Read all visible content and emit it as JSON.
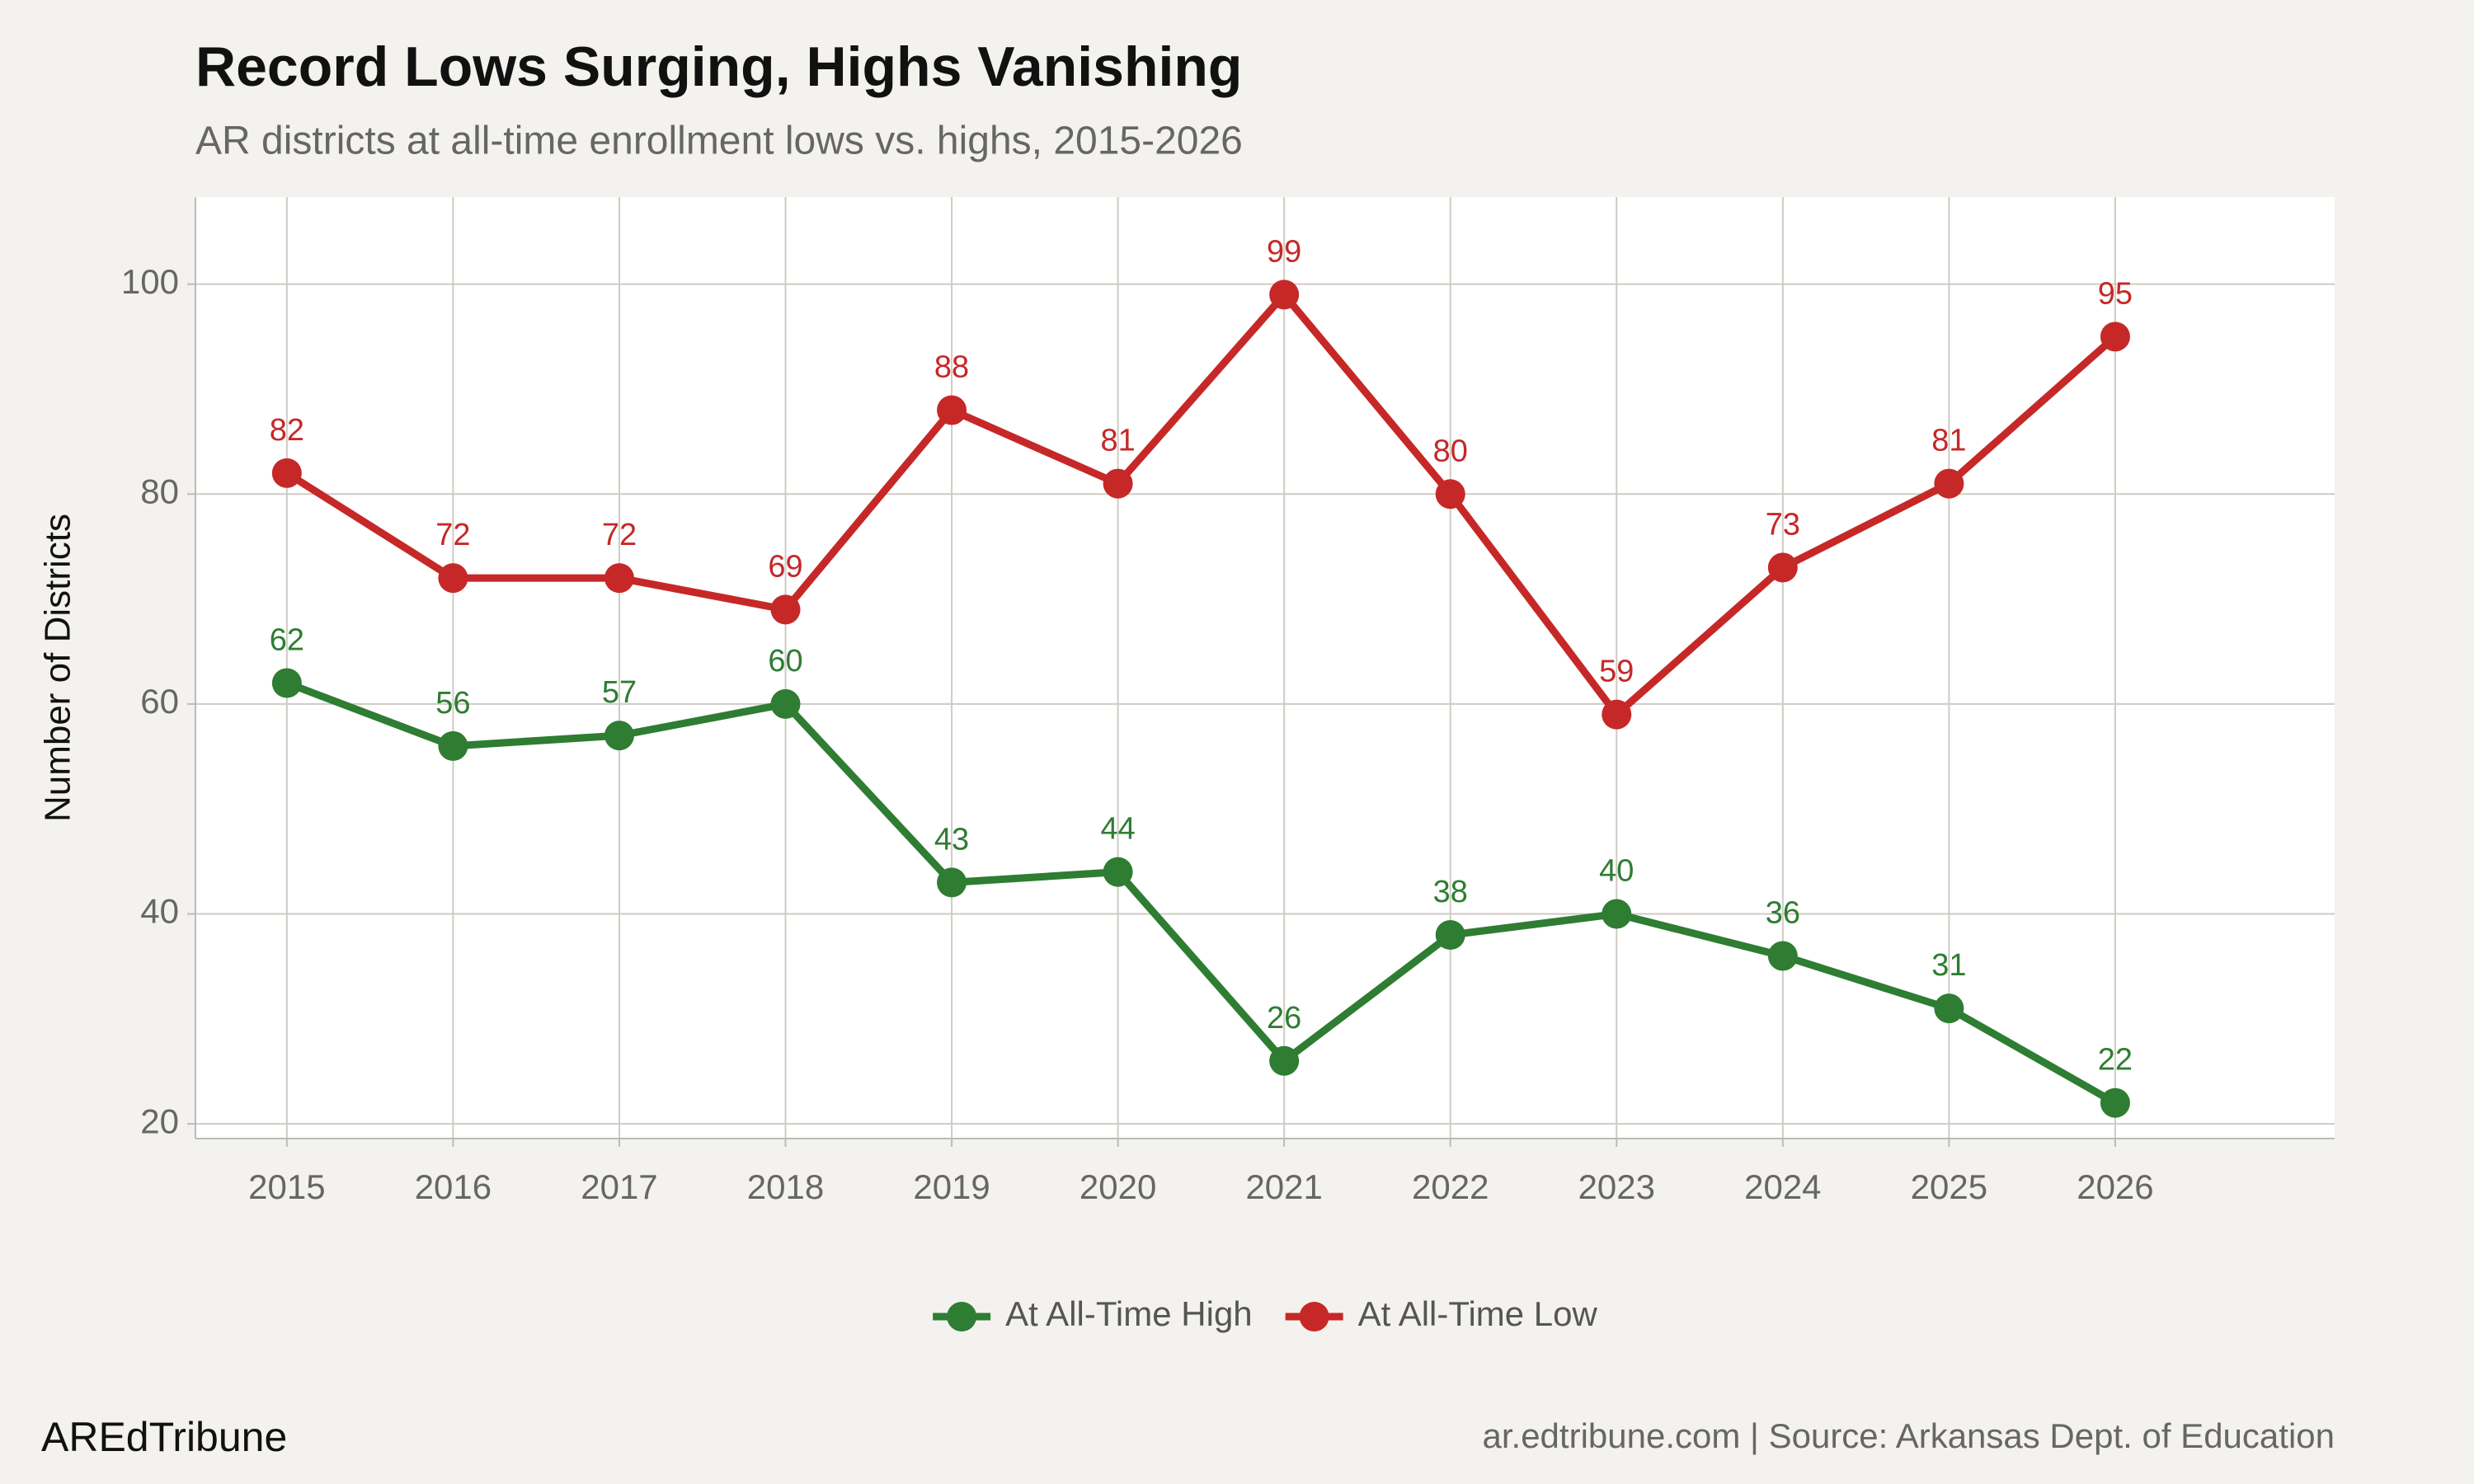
{
  "chart_data": {
    "type": "line",
    "title": "Record Lows Surging, Highs Vanishing",
    "subtitle": "AR districts at all-time enrollment lows vs. highs, 2015-2026",
    "y_label": "Number of Districts",
    "x": [
      2015,
      2016,
      2017,
      2018,
      2019,
      2020,
      2021,
      2022,
      2023,
      2024,
      2025,
      2026
    ],
    "series": [
      {
        "name": "At All-Time High",
        "color": "#2e7d32",
        "values": [
          62,
          56,
          57,
          60,
          43,
          44,
          26,
          38,
          40,
          36,
          31,
          22
        ]
      },
      {
        "name": "At All-Time Low",
        "color": "#c62828",
        "values": [
          82,
          72,
          72,
          69,
          88,
          81,
          99,
          80,
          59,
          73,
          81,
          95
        ]
      }
    ],
    "xlim": [
      2014.45,
      2027.32
    ],
    "ylim": [
      18.6,
      108.3
    ],
    "xticks": [
      2015,
      2016,
      2017,
      2018,
      2019,
      2020,
      2021,
      2022,
      2023,
      2024,
      2025,
      2026
    ],
    "yticks": [
      20,
      40,
      60,
      80,
      100
    ],
    "grid": true,
    "legend": "bottom",
    "credit": "AREdTribune",
    "source": "ar.edtribune.com | Source: Arkansas Dept. of Education"
  }
}
